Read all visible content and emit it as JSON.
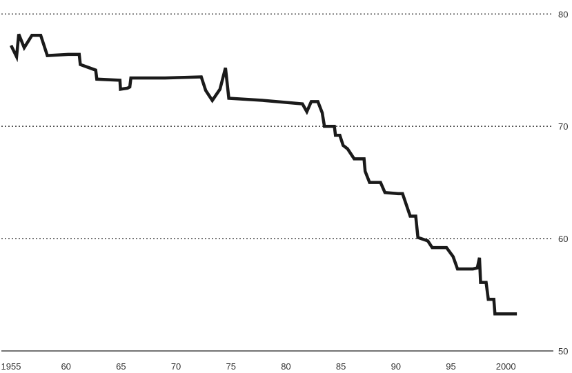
{
  "chart_data": {
    "type": "line",
    "title": "",
    "xlabel": "",
    "ylabel": "",
    "xlim": [
      1955,
      2003
    ],
    "ylim": [
      50,
      81
    ],
    "grid": true,
    "y_axis_side": "right",
    "x_tick_values": [
      1955,
      1960,
      1965,
      1970,
      1975,
      1980,
      1985,
      1990,
      1995,
      2000
    ],
    "x_tick_labels": [
      "1955",
      "60",
      "65",
      "70",
      "75",
      "80",
      "85",
      "90",
      "95",
      "2000"
    ],
    "y_tick_values": [
      50,
      60,
      70,
      80
    ],
    "y_tick_labels": [
      "50",
      "60",
      "70",
      "80"
    ],
    "series": [
      {
        "color": "#1a1a1a",
        "points": [
          [
            1955.0,
            77.2
          ],
          [
            1955.5,
            76.2
          ],
          [
            1955.7,
            78.2
          ],
          [
            1956.2,
            77.0
          ],
          [
            1956.9,
            78.1
          ],
          [
            1957.7,
            78.1
          ],
          [
            1958.3,
            76.3
          ],
          [
            1960.2,
            76.4
          ],
          [
            1961.2,
            76.4
          ],
          [
            1961.3,
            75.5
          ],
          [
            1962.7,
            75.0
          ],
          [
            1962.8,
            74.2
          ],
          [
            1964.9,
            74.1
          ],
          [
            1964.95,
            73.3
          ],
          [
            1965.6,
            73.4
          ],
          [
            1965.8,
            73.5
          ],
          [
            1965.9,
            74.3
          ],
          [
            1969.0,
            74.3
          ],
          [
            1972.3,
            74.4
          ],
          [
            1972.7,
            73.2
          ],
          [
            1973.3,
            72.3
          ],
          [
            1974.0,
            73.3
          ],
          [
            1974.5,
            75.2
          ],
          [
            1974.8,
            72.5
          ],
          [
            1978.0,
            72.3
          ],
          [
            1981.5,
            72.0
          ],
          [
            1981.9,
            71.3
          ],
          [
            1982.3,
            72.2
          ],
          [
            1982.9,
            72.2
          ],
          [
            1983.3,
            71.2
          ],
          [
            1983.5,
            70.0
          ],
          [
            1984.1,
            70.0
          ],
          [
            1984.4,
            70.0
          ],
          [
            1984.5,
            69.2
          ],
          [
            1984.9,
            69.2
          ],
          [
            1985.2,
            68.3
          ],
          [
            1985.6,
            68.0
          ],
          [
            1986.2,
            67.1
          ],
          [
            1986.7,
            67.1
          ],
          [
            1987.1,
            67.1
          ],
          [
            1987.2,
            66.0
          ],
          [
            1987.6,
            65.0
          ],
          [
            1988.2,
            65.0
          ],
          [
            1988.6,
            65.0
          ],
          [
            1989.0,
            64.1
          ],
          [
            1990.2,
            64.0
          ],
          [
            1990.6,
            64.0
          ],
          [
            1991.3,
            62.0
          ],
          [
            1991.8,
            62.0
          ],
          [
            1992.0,
            60.1
          ],
          [
            1992.9,
            59.8
          ],
          [
            1993.3,
            59.2
          ],
          [
            1994.6,
            59.2
          ],
          [
            1995.2,
            58.4
          ],
          [
            1995.6,
            57.3
          ],
          [
            1996.5,
            57.3
          ],
          [
            1997.0,
            57.3
          ],
          [
            1997.4,
            57.4
          ],
          [
            1997.6,
            58.3
          ],
          [
            1997.7,
            56.1
          ],
          [
            1998.2,
            56.1
          ],
          [
            1998.4,
            54.6
          ],
          [
            1998.9,
            54.6
          ],
          [
            1999.0,
            53.3
          ],
          [
            2000.2,
            53.3
          ],
          [
            2001.0,
            53.3
          ]
        ]
      }
    ]
  }
}
